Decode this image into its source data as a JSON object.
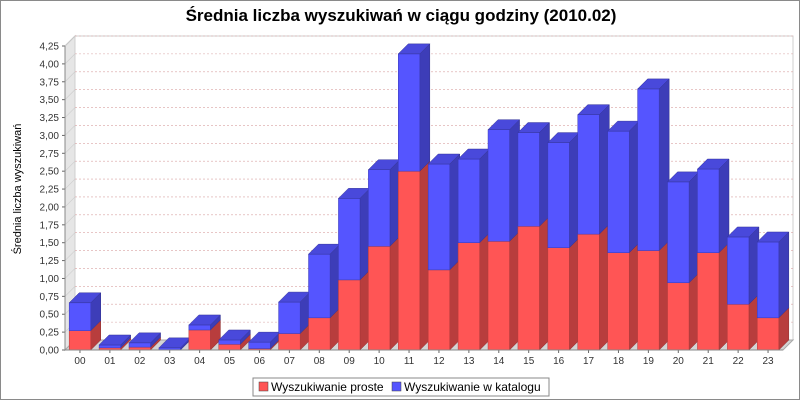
{
  "chart_data": {
    "type": "bar",
    "stacked": true,
    "style": "3d",
    "title": "Średnia liczba wyszukiwań w ciągu godziny (2010.02)",
    "xlabel": "",
    "ylabel": "Średnia liczba wyszukiwań",
    "ylim": [
      0,
      4.25
    ],
    "yticks": [
      "0,00",
      "0,25",
      "0,50",
      "0,75",
      "1,00",
      "1,25",
      "1,50",
      "1,75",
      "2,00",
      "2,25",
      "2,50",
      "2,75",
      "3,00",
      "3,25",
      "3,50",
      "3,75",
      "4,00",
      "4,25"
    ],
    "grid": true,
    "legend_position": "bottom",
    "categories": [
      "00",
      "01",
      "02",
      "03",
      "04",
      "05",
      "06",
      "07",
      "08",
      "09",
      "10",
      "11",
      "12",
      "13",
      "14",
      "15",
      "16",
      "17",
      "18",
      "19",
      "20",
      "21",
      "22",
      "23"
    ],
    "series": [
      {
        "name": "Wyszukiwanie proste",
        "color": "#ff5555",
        "values": [
          0.27,
          0.03,
          0.04,
          0.0,
          0.28,
          0.08,
          0.02,
          0.23,
          0.45,
          0.98,
          1.45,
          2.5,
          1.12,
          1.5,
          1.52,
          1.73,
          1.43,
          1.62,
          1.36,
          1.39,
          0.94,
          1.36,
          0.64,
          0.45
        ]
      },
      {
        "name": "Wyszukiwanie w katalogu",
        "color": "#5555ff",
        "values": [
          0.39,
          0.04,
          0.06,
          0.03,
          0.07,
          0.06,
          0.09,
          0.44,
          0.89,
          1.14,
          1.07,
          1.64,
          1.48,
          1.17,
          1.56,
          1.31,
          1.47,
          1.67,
          1.7,
          2.26,
          1.41,
          1.17,
          0.94,
          1.06
        ]
      }
    ]
  }
}
